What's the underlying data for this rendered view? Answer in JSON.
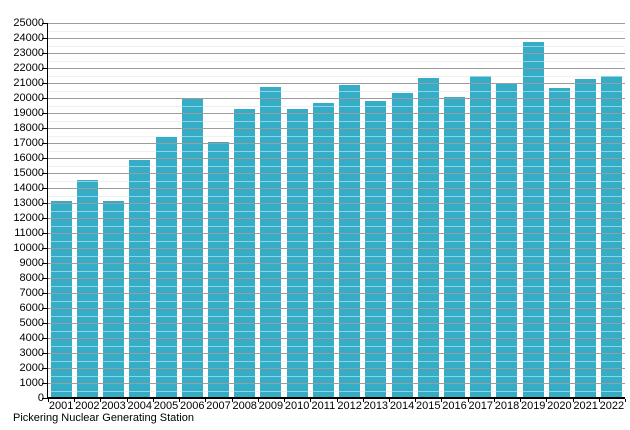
{
  "chart_data": {
    "type": "bar",
    "title": "",
    "xlabel": "",
    "ylabel": "",
    "categories": [
      "2001",
      "2002",
      "2003",
      "2004",
      "2005",
      "2006",
      "2007",
      "2008",
      "2009",
      "2010",
      "2011",
      "2012",
      "2013",
      "2014",
      "2015",
      "2016",
      "2017",
      "2018",
      "2019",
      "2020",
      "2021",
      "2022"
    ],
    "values": [
      13150,
      14550,
      13150,
      15900,
      17400,
      19950,
      17050,
      19250,
      20750,
      19300,
      19700,
      20900,
      19800,
      20350,
      21350,
      20100,
      21500,
      20950,
      23750,
      20650,
      21250,
      21450
    ],
    "ylim": [
      0,
      25000
    ],
    "y_tick_step": 1000,
    "y_minor_step": 500,
    "grid": "horizontal, minor + major, drawn over bars",
    "legend_position": "none",
    "bar_color": "#35adc6",
    "major_grid_color": "#9c9c9c",
    "minor_grid_color": "#e4e4e4",
    "axis_color": "#000000",
    "text_color": "#000000"
  },
  "footer": {
    "caption": "Pickering Nuclear Generating Station"
  }
}
